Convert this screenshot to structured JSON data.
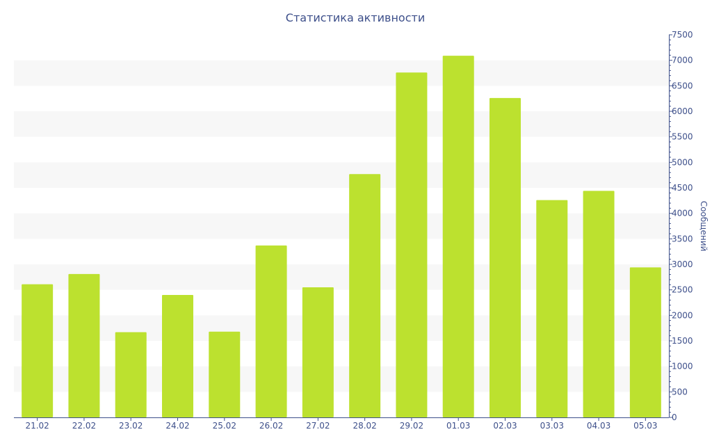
{
  "colors": {
    "bar": "#bce12f",
    "band": "#f7f7f7",
    "axis": "#3d4f8a",
    "text": "#3d4f8a"
  },
  "chart_data": {
    "type": "bar",
    "title": "Статистика активности",
    "xlabel": "",
    "ylabel": "Сообщений",
    "y_axis_position": "right",
    "grid": "alternating horizontal bands",
    "legend": "none",
    "categories": [
      "21.02",
      "22.02",
      "23.02",
      "24.02",
      "25.02",
      "26.02",
      "27.02",
      "28.02",
      "29.02",
      "01.03",
      "02.03",
      "03.03",
      "04.03",
      "05.03"
    ],
    "values": [
      2610,
      2810,
      1670,
      2400,
      1680,
      3370,
      2550,
      4770,
      6760,
      7090,
      6260,
      4260,
      4440,
      2940
    ],
    "ylim": [
      0,
      7500
    ],
    "yticks": [
      0,
      500,
      1000,
      1500,
      2000,
      2500,
      3000,
      3500,
      4000,
      4500,
      5000,
      5500,
      6000,
      6500,
      7000,
      7500
    ]
  }
}
